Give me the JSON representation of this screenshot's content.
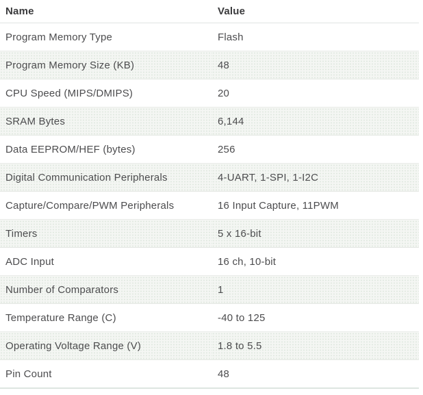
{
  "table": {
    "columns": [
      {
        "label": "Name"
      },
      {
        "label": "Value"
      }
    ],
    "rows": [
      {
        "name": "Program Memory Type",
        "value": "Flash"
      },
      {
        "name": "Program Memory Size (KB)",
        "value": "48"
      },
      {
        "name": "CPU Speed (MIPS/DMIPS)",
        "value": "20"
      },
      {
        "name": "SRAM Bytes",
        "value": "6,144"
      },
      {
        "name": "Data EEPROM/HEF (bytes)",
        "value": "256"
      },
      {
        "name": "Digital Communication Peripherals",
        "value": "4-UART, 1-SPI, 1-I2C"
      },
      {
        "name": "Capture/Compare/PWM Peripherals",
        "value": "16 Input Capture, 11PWM"
      },
      {
        "name": "Timers",
        "value": "5 x 16-bit"
      },
      {
        "name": "ADC Input",
        "value": "16 ch, 10-bit"
      },
      {
        "name": "Number of Comparators",
        "value": "1"
      },
      {
        "name": "Temperature Range (C)",
        "value": "-40 to 125"
      },
      {
        "name": "Operating Voltage Range (V)",
        "value": "1.8 to 5.5"
      },
      {
        "name": "Pin Count",
        "value": "48"
      }
    ]
  },
  "colors": {
    "row_stripe": "#f4f6f3",
    "stripe_dot": "#dfe8df",
    "row_border": "#eaece9",
    "header_text": "#3a3a3c",
    "body_text": "#4c4c4e",
    "bottom_border": "#dde5e1"
  }
}
